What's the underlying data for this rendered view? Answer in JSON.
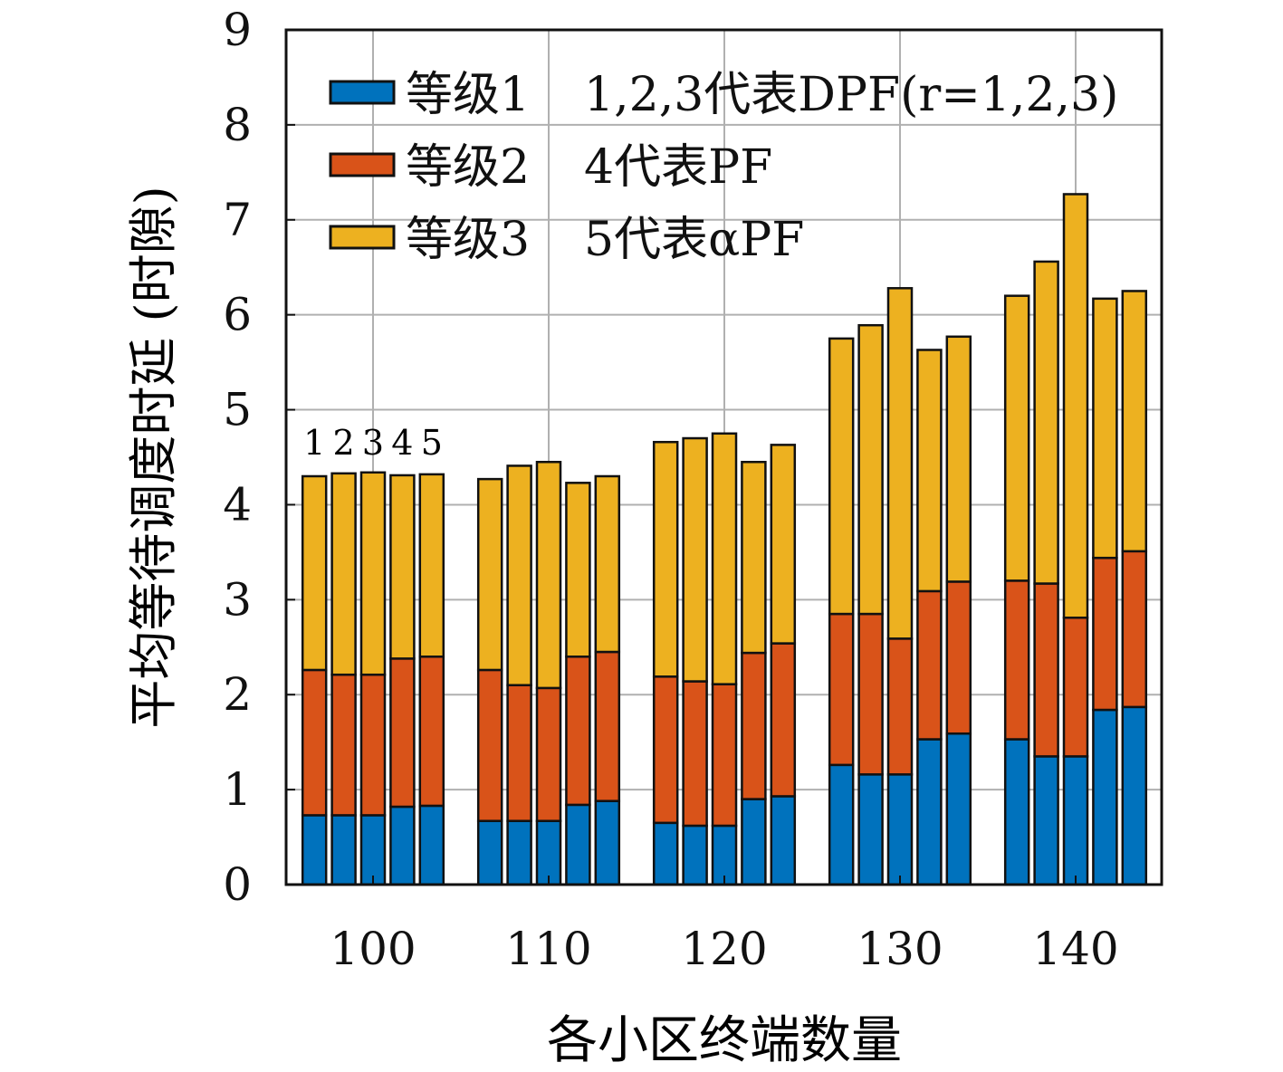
{
  "chart_data": {
    "type": "bar",
    "stacked": true,
    "title": "",
    "xlabel": "各小区终端数量",
    "ylabel": "平均等待调度时延 (时隙)",
    "ylim": [
      0,
      9
    ],
    "yticks": [
      "0",
      "1",
      "2",
      "3",
      "4",
      "5",
      "6",
      "7",
      "8",
      "9"
    ],
    "grid": true,
    "categories": [
      "100",
      "110",
      "120",
      "130",
      "140"
    ],
    "bar_labels": [
      "1",
      "2",
      "3",
      "4",
      "5"
    ],
    "legend_position": "top-left",
    "series": [
      {
        "name": "等级1",
        "color": "#0072BD",
        "values": [
          [
            0.73,
            0.73,
            0.73,
            0.82,
            0.83
          ],
          [
            0.67,
            0.67,
            0.67,
            0.84,
            0.88
          ],
          [
            0.65,
            0.62,
            0.62,
            0.9,
            0.93
          ],
          [
            1.26,
            1.16,
            1.16,
            1.53,
            1.59
          ],
          [
            1.53,
            1.35,
            1.35,
            1.84,
            1.87
          ]
        ]
      },
      {
        "name": "等级2",
        "color": "#D95319",
        "values": [
          [
            1.53,
            1.48,
            1.48,
            1.56,
            1.57
          ],
          [
            1.59,
            1.43,
            1.4,
            1.56,
            1.57
          ],
          [
            1.54,
            1.52,
            1.49,
            1.54,
            1.61
          ],
          [
            1.59,
            1.69,
            1.43,
            1.56,
            1.6
          ],
          [
            1.67,
            1.82,
            1.46,
            1.6,
            1.64
          ]
        ]
      },
      {
        "name": "等级3",
        "color": "#EDB120",
        "values": [
          [
            2.04,
            2.12,
            2.13,
            1.93,
            1.92
          ],
          [
            2.01,
            2.31,
            2.38,
            1.83,
            1.85
          ],
          [
            2.47,
            2.56,
            2.64,
            2.01,
            2.09
          ],
          [
            2.9,
            3.04,
            3.69,
            2.54,
            2.58
          ],
          [
            3.0,
            3.39,
            4.46,
            2.73,
            2.74
          ]
        ]
      }
    ],
    "legend_notes": [
      "1,2,3代表DPF(r=1,2,3)",
      "4代表PF",
      "5代表αPF"
    ]
  }
}
